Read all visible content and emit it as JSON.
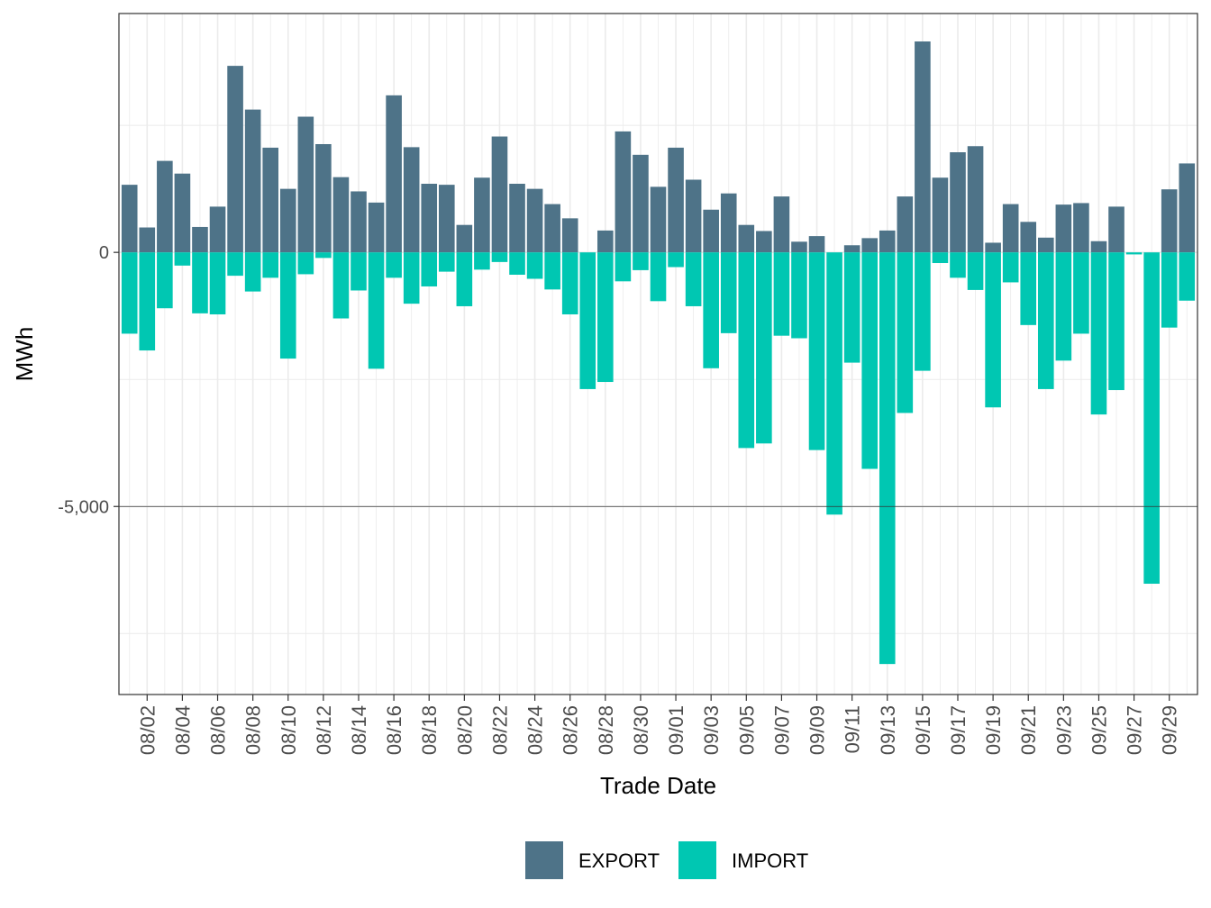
{
  "chart_data": {
    "type": "bar",
    "stacked": true,
    "xlabel": "Trade Date",
    "ylabel": "MWh",
    "ylim": [
      -8700,
      4700
    ],
    "yticks": [
      0,
      -5000
    ],
    "ytick_labels": [
      "0",
      "-5,000"
    ],
    "dates": [
      "08/01",
      "08/02",
      "08/03",
      "08/04",
      "08/05",
      "08/06",
      "08/07",
      "08/08",
      "08/09",
      "08/10",
      "08/11",
      "08/12",
      "08/13",
      "08/14",
      "08/15",
      "08/16",
      "08/17",
      "08/18",
      "08/19",
      "08/20",
      "08/21",
      "08/22",
      "08/23",
      "08/24",
      "08/25",
      "08/26",
      "08/27",
      "08/28",
      "08/29",
      "08/30",
      "08/31",
      "09/01",
      "09/02",
      "09/03",
      "09/04",
      "09/05",
      "09/06",
      "09/07",
      "09/08",
      "09/09",
      "09/10",
      "09/11",
      "09/12",
      "09/13",
      "09/14",
      "09/15",
      "09/16",
      "09/17",
      "09/18",
      "09/19",
      "09/20",
      "09/21",
      "09/22",
      "09/23",
      "09/24",
      "09/25",
      "09/26",
      "09/27",
      "09/28",
      "09/29",
      "09/30"
    ],
    "xtick_labels": [
      "08/02",
      "08/04",
      "08/06",
      "08/08",
      "08/10",
      "08/12",
      "08/14",
      "08/16",
      "08/18",
      "08/20",
      "08/22",
      "08/24",
      "08/26",
      "08/28",
      "08/30",
      "09/01",
      "09/03",
      "09/05",
      "09/07",
      "09/09",
      "09/11",
      "09/13",
      "09/15",
      "09/17",
      "09/19",
      "09/21",
      "09/23",
      "09/25",
      "09/27",
      "09/29"
    ],
    "series": [
      {
        "name": "EXPORT",
        "color": "#4e7388",
        "values": [
          1330,
          490,
          1800,
          1550,
          500,
          900,
          3670,
          2810,
          2060,
          1250,
          2670,
          2130,
          1480,
          1200,
          980,
          3090,
          2070,
          1350,
          1330,
          540,
          1470,
          2280,
          1350,
          1250,
          950,
          670,
          0,
          430,
          2380,
          1920,
          1290,
          2060,
          1430,
          840,
          1160,
          540,
          420,
          1100,
          210,
          320,
          0,
          140,
          280,
          430,
          1100,
          4150,
          1470,
          1970,
          2090,
          190,
          950,
          600,
          290,
          940,
          970,
          220,
          900,
          0,
          0,
          1240,
          1750
        ]
      },
      {
        "name": "IMPORT",
        "color": "#00c7b2",
        "values": [
          -1600,
          -1930,
          -1100,
          -260,
          -1200,
          -1220,
          -460,
          -770,
          -500,
          -2090,
          -430,
          -110,
          -1300,
          -750,
          -2290,
          -500,
          -1010,
          -670,
          -380,
          -1060,
          -340,
          -190,
          -440,
          -520,
          -730,
          -1220,
          -2690,
          -2550,
          -570,
          -350,
          -960,
          -290,
          -1060,
          -2280,
          -1590,
          -3850,
          -3760,
          -1640,
          -1690,
          -3890,
          -5160,
          -2170,
          -4260,
          -8100,
          -3160,
          -2330,
          -210,
          -500,
          -740,
          -3050,
          -590,
          -1430,
          -2690,
          -2130,
          -1600,
          -3190,
          -2710,
          -40,
          -6520,
          -1480,
          -950
        ]
      }
    ],
    "legend": {
      "position": "bottom"
    },
    "grid": true
  }
}
